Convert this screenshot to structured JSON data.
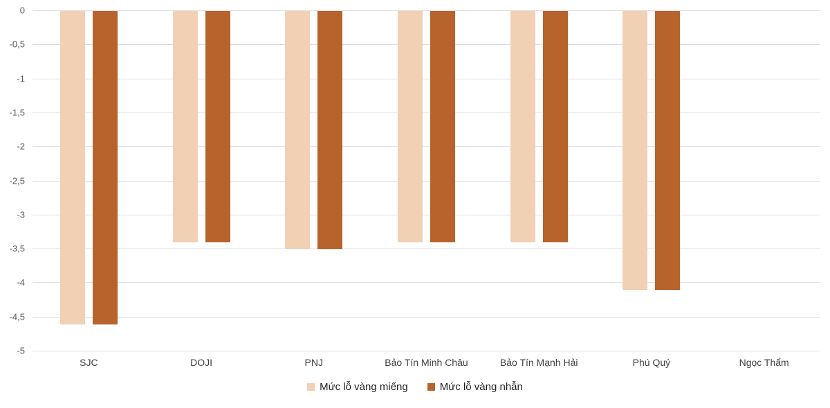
{
  "chart_data": {
    "type": "bar",
    "title": "",
    "xlabel": "",
    "ylabel": "",
    "categories": [
      "SJC",
      "DOJI",
      "PNJ",
      "Bảo Tín Minh Châu",
      "Bảo Tín Mạnh Hải",
      "Phú Quý",
      "Ngọc Thẩm"
    ],
    "series": [
      {
        "name": "Mức lỗ vàng miếng",
        "color": "#F2D0B3",
        "values": [
          -4.6,
          -3.4,
          -3.5,
          -3.4,
          -3.4,
          -4.1,
          0
        ]
      },
      {
        "name": "Mức lỗ vàng nhẫn",
        "color": "#B8622C",
        "values": [
          -4.6,
          -3.4,
          -3.5,
          -3.4,
          -3.4,
          -4.1,
          0
        ]
      }
    ],
    "ylim": [
      -5,
      0
    ],
    "ytick_step": 0.5,
    "ytick_labels": [
      "0",
      "-0,5",
      "-1",
      "-1,5",
      "-2",
      "-2,5",
      "-3",
      "-3,5",
      "-4",
      "-4,5",
      "-5"
    ],
    "decimal_separator": ",",
    "grid": true,
    "legend_position": "bottom"
  },
  "style": {
    "background": "#FFFFFF",
    "gridline_color": "#DCDCDC",
    "tick_text_color": "#595959",
    "category_text_color": "#3F3F3F",
    "legend_text_color": "#1F1F1F"
  }
}
